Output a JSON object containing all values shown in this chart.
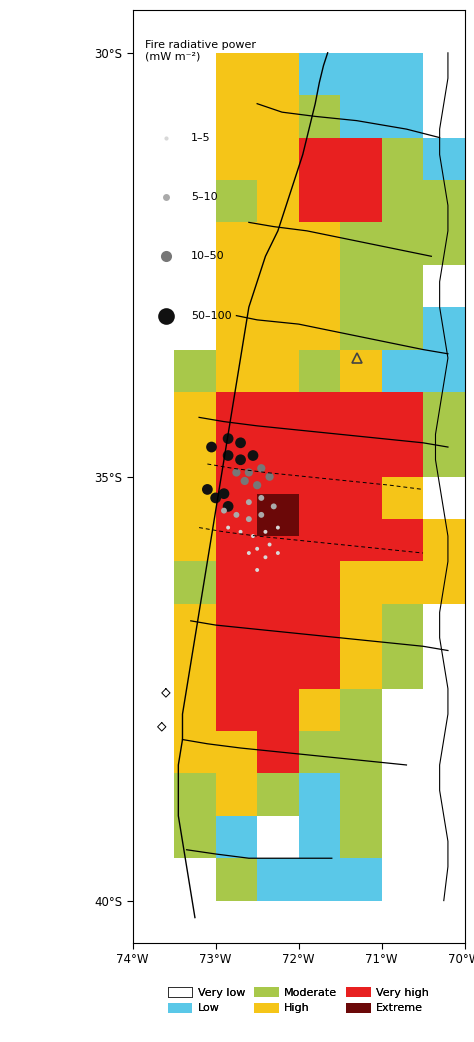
{
  "lon_min": -74.0,
  "lon_max": -69.5,
  "lat_min": -40.5,
  "lat_max": -29.5,
  "map_lon_min": -73.9,
  "map_lon_max": -69.8,
  "map_lat_min": -40.2,
  "map_lat_max": -29.8,
  "colors": {
    "very_low": "#ffffff",
    "low": "#5ac8e8",
    "moderate": "#a8c84a",
    "high": "#f5c518",
    "very_high": "#e82020",
    "extreme": "#6b0808"
  },
  "legend_labels": [
    "Very low",
    "Low",
    "Moderate",
    "High",
    "Very high",
    "Extreme"
  ],
  "legend_colors": [
    "#ffffff",
    "#5ac8e8",
    "#a8c84a",
    "#f5c518",
    "#e82020",
    "#6b0808"
  ],
  "frp_legend_title": "Fire radiative power\n(mW m⁻²)",
  "frp_labels": [
    "1–5",
    "5–10",
    "10–50",
    "50–100"
  ],
  "frp_dot_colors": [
    "#d8d8d8",
    "#aaaaaa",
    "#777777",
    "#111111"
  ],
  "frp_dot_sizes": [
    3,
    5,
    8,
    12
  ],
  "xlabel_ticks": [
    -74,
    -73,
    -72,
    -71,
    -70
  ],
  "xlabel_labels": [
    "74°W",
    "73°W",
    "72°W",
    "71°W",
    "70°W"
  ],
  "ylabel_ticks": [
    -30,
    -35,
    -40
  ],
  "ylabel_labels": [
    "30°S",
    "35°S",
    "40°S"
  ],
  "cell_size": 0.5,
  "figsize": [
    4.74,
    10.42
  ],
  "dpi": 100,
  "grid_cells": [
    {
      "lon": -72.75,
      "lat": -30.25,
      "color": "high"
    },
    {
      "lon": -72.25,
      "lat": -30.25,
      "color": "high"
    },
    {
      "lon": -71.75,
      "lat": -30.25,
      "color": "low"
    },
    {
      "lon": -71.25,
      "lat": -30.25,
      "color": "low"
    },
    {
      "lon": -70.75,
      "lat": -30.25,
      "color": "low"
    },
    {
      "lon": -72.75,
      "lat": -30.75,
      "color": "high"
    },
    {
      "lon": -72.25,
      "lat": -30.75,
      "color": "high"
    },
    {
      "lon": -71.75,
      "lat": -30.75,
      "color": "moderate"
    },
    {
      "lon": -71.25,
      "lat": -30.75,
      "color": "low"
    },
    {
      "lon": -70.75,
      "lat": -30.75,
      "color": "low"
    },
    {
      "lon": -72.75,
      "lat": -31.25,
      "color": "high"
    },
    {
      "lon": -72.25,
      "lat": -31.25,
      "color": "high"
    },
    {
      "lon": -71.75,
      "lat": -31.25,
      "color": "very_high"
    },
    {
      "lon": -71.25,
      "lat": -31.25,
      "color": "very_high"
    },
    {
      "lon": -70.75,
      "lat": -31.25,
      "color": "moderate"
    },
    {
      "lon": -70.25,
      "lat": -31.25,
      "color": "low"
    },
    {
      "lon": -72.75,
      "lat": -31.75,
      "color": "moderate"
    },
    {
      "lon": -72.25,
      "lat": -31.75,
      "color": "high"
    },
    {
      "lon": -71.75,
      "lat": -31.75,
      "color": "very_high"
    },
    {
      "lon": -71.25,
      "lat": -31.75,
      "color": "very_high"
    },
    {
      "lon": -70.75,
      "lat": -31.75,
      "color": "moderate"
    },
    {
      "lon": -70.25,
      "lat": -31.75,
      "color": "moderate"
    },
    {
      "lon": -72.75,
      "lat": -32.25,
      "color": "high"
    },
    {
      "lon": -72.25,
      "lat": -32.25,
      "color": "high"
    },
    {
      "lon": -71.75,
      "lat": -32.25,
      "color": "high"
    },
    {
      "lon": -71.25,
      "lat": -32.25,
      "color": "moderate"
    },
    {
      "lon": -70.75,
      "lat": -32.25,
      "color": "moderate"
    },
    {
      "lon": -70.25,
      "lat": -32.25,
      "color": "moderate"
    },
    {
      "lon": -72.75,
      "lat": -32.75,
      "color": "high"
    },
    {
      "lon": -72.25,
      "lat": -32.75,
      "color": "high"
    },
    {
      "lon": -71.75,
      "lat": -32.75,
      "color": "high"
    },
    {
      "lon": -71.25,
      "lat": -32.75,
      "color": "moderate"
    },
    {
      "lon": -70.75,
      "lat": -32.75,
      "color": "moderate"
    },
    {
      "lon": -72.75,
      "lat": -33.25,
      "color": "high"
    },
    {
      "lon": -72.25,
      "lat": -33.25,
      "color": "high"
    },
    {
      "lon": -71.75,
      "lat": -33.25,
      "color": "high"
    },
    {
      "lon": -71.25,
      "lat": -33.25,
      "color": "moderate"
    },
    {
      "lon": -70.75,
      "lat": -33.25,
      "color": "moderate"
    },
    {
      "lon": -70.25,
      "lat": -33.25,
      "color": "low"
    },
    {
      "lon": -73.25,
      "lat": -33.75,
      "color": "moderate"
    },
    {
      "lon": -72.75,
      "lat": -33.75,
      "color": "high"
    },
    {
      "lon": -72.25,
      "lat": -33.75,
      "color": "high"
    },
    {
      "lon": -71.75,
      "lat": -33.75,
      "color": "moderate"
    },
    {
      "lon": -71.25,
      "lat": -33.75,
      "color": "high"
    },
    {
      "lon": -70.75,
      "lat": -33.75,
      "color": "low"
    },
    {
      "lon": -70.25,
      "lat": -33.75,
      "color": "low"
    },
    {
      "lon": -73.25,
      "lat": -34.25,
      "color": "high"
    },
    {
      "lon": -72.75,
      "lat": -34.25,
      "color": "very_high"
    },
    {
      "lon": -72.25,
      "lat": -34.25,
      "color": "very_high"
    },
    {
      "lon": -71.75,
      "lat": -34.25,
      "color": "very_high"
    },
    {
      "lon": -71.25,
      "lat": -34.25,
      "color": "very_high"
    },
    {
      "lon": -70.75,
      "lat": -34.25,
      "color": "very_high"
    },
    {
      "lon": -70.25,
      "lat": -34.25,
      "color": "moderate"
    },
    {
      "lon": -73.25,
      "lat": -34.75,
      "color": "high"
    },
    {
      "lon": -72.75,
      "lat": -34.75,
      "color": "very_high"
    },
    {
      "lon": -72.25,
      "lat": -34.75,
      "color": "very_high"
    },
    {
      "lon": -71.75,
      "lat": -34.75,
      "color": "very_high"
    },
    {
      "lon": -71.25,
      "lat": -34.75,
      "color": "very_high"
    },
    {
      "lon": -70.75,
      "lat": -34.75,
      "color": "very_high"
    },
    {
      "lon": -70.25,
      "lat": -34.75,
      "color": "moderate"
    },
    {
      "lon": -73.25,
      "lat": -35.25,
      "color": "high"
    },
    {
      "lon": -72.75,
      "lat": -35.25,
      "color": "very_high"
    },
    {
      "lon": -72.25,
      "lat": -35.25,
      "color": "very_high"
    },
    {
      "lon": -71.75,
      "lat": -35.25,
      "color": "very_high"
    },
    {
      "lon": -71.25,
      "lat": -35.25,
      "color": "very_high"
    },
    {
      "lon": -70.75,
      "lat": -35.25,
      "color": "high"
    },
    {
      "lon": -73.25,
      "lat": -35.75,
      "color": "high"
    },
    {
      "lon": -72.75,
      "lat": -35.75,
      "color": "very_high"
    },
    {
      "lon": -72.25,
      "lat": -35.75,
      "color": "very_high"
    },
    {
      "lon": -71.75,
      "lat": -35.75,
      "color": "very_high"
    },
    {
      "lon": -71.25,
      "lat": -35.75,
      "color": "very_high"
    },
    {
      "lon": -70.75,
      "lat": -35.75,
      "color": "very_high"
    },
    {
      "lon": -70.25,
      "lat": -35.75,
      "color": "high"
    },
    {
      "lon": -73.25,
      "lat": -36.25,
      "color": "moderate"
    },
    {
      "lon": -72.75,
      "lat": -36.25,
      "color": "very_high"
    },
    {
      "lon": -72.25,
      "lat": -36.25,
      "color": "very_high"
    },
    {
      "lon": -71.75,
      "lat": -36.25,
      "color": "very_high"
    },
    {
      "lon": -71.25,
      "lat": -36.25,
      "color": "high"
    },
    {
      "lon": -70.75,
      "lat": -36.25,
      "color": "high"
    },
    {
      "lon": -70.25,
      "lat": -36.25,
      "color": "high"
    },
    {
      "lon": -73.25,
      "lat": -36.75,
      "color": "high"
    },
    {
      "lon": -72.75,
      "lat": -36.75,
      "color": "very_high"
    },
    {
      "lon": -72.25,
      "lat": -36.75,
      "color": "very_high"
    },
    {
      "lon": -71.75,
      "lat": -36.75,
      "color": "very_high"
    },
    {
      "lon": -71.25,
      "lat": -36.75,
      "color": "high"
    },
    {
      "lon": -70.75,
      "lat": -36.75,
      "color": "moderate"
    },
    {
      "lon": -73.25,
      "lat": -37.25,
      "color": "high"
    },
    {
      "lon": -72.75,
      "lat": -37.25,
      "color": "very_high"
    },
    {
      "lon": -72.25,
      "lat": -37.25,
      "color": "very_high"
    },
    {
      "lon": -71.75,
      "lat": -37.25,
      "color": "very_high"
    },
    {
      "lon": -71.25,
      "lat": -37.25,
      "color": "high"
    },
    {
      "lon": -70.75,
      "lat": -37.25,
      "color": "moderate"
    },
    {
      "lon": -73.25,
      "lat": -37.75,
      "color": "high"
    },
    {
      "lon": -72.75,
      "lat": -37.75,
      "color": "very_high"
    },
    {
      "lon": -72.25,
      "lat": -37.75,
      "color": "very_high"
    },
    {
      "lon": -71.75,
      "lat": -37.75,
      "color": "high"
    },
    {
      "lon": -71.25,
      "lat": -37.75,
      "color": "moderate"
    },
    {
      "lon": -73.25,
      "lat": -38.25,
      "color": "high"
    },
    {
      "lon": -72.75,
      "lat": -38.25,
      "color": "high"
    },
    {
      "lon": -72.25,
      "lat": -38.25,
      "color": "very_high"
    },
    {
      "lon": -71.75,
      "lat": -38.25,
      "color": "moderate"
    },
    {
      "lon": -71.25,
      "lat": -38.25,
      "color": "moderate"
    },
    {
      "lon": -73.25,
      "lat": -38.75,
      "color": "moderate"
    },
    {
      "lon": -72.75,
      "lat": -38.75,
      "color": "high"
    },
    {
      "lon": -72.25,
      "lat": -38.75,
      "color": "moderate"
    },
    {
      "lon": -71.75,
      "lat": -38.75,
      "color": "low"
    },
    {
      "lon": -71.25,
      "lat": -38.75,
      "color": "moderate"
    },
    {
      "lon": -73.25,
      "lat": -39.25,
      "color": "moderate"
    },
    {
      "lon": -72.75,
      "lat": -39.25,
      "color": "low"
    },
    {
      "lon": -72.25,
      "lat": -39.25,
      "color": "very_low"
    },
    {
      "lon": -71.75,
      "lat": -39.25,
      "color": "low"
    },
    {
      "lon": -71.25,
      "lat": -39.25,
      "color": "moderate"
    },
    {
      "lon": -72.75,
      "lat": -39.75,
      "color": "moderate"
    },
    {
      "lon": -72.25,
      "lat": -39.75,
      "color": "low"
    },
    {
      "lon": -71.75,
      "lat": -39.75,
      "color": "low"
    },
    {
      "lon": -71.25,
      "lat": -39.75,
      "color": "low"
    }
  ],
  "extreme_cells": [
    {
      "lon": -72.25,
      "lat": -35.45
    }
  ],
  "dot_markers": [
    {
      "lon": -73.05,
      "lat": -34.65,
      "cat": 3
    },
    {
      "lon": -72.85,
      "lat": -34.55,
      "cat": 3
    },
    {
      "lon": -72.7,
      "lat": -34.6,
      "cat": 3
    },
    {
      "lon": -72.85,
      "lat": -34.75,
      "cat": 3
    },
    {
      "lon": -72.7,
      "lat": -34.8,
      "cat": 3
    },
    {
      "lon": -72.55,
      "lat": -34.75,
      "cat": 3
    },
    {
      "lon": -72.6,
      "lat": -34.95,
      "cat": 2
    },
    {
      "lon": -72.45,
      "lat": -34.9,
      "cat": 2
    },
    {
      "lon": -72.35,
      "lat": -35.0,
      "cat": 2
    },
    {
      "lon": -72.5,
      "lat": -35.1,
      "cat": 2
    },
    {
      "lon": -72.65,
      "lat": -35.05,
      "cat": 2
    },
    {
      "lon": -72.75,
      "lat": -34.95,
      "cat": 2
    },
    {
      "lon": -73.1,
      "lat": -35.15,
      "cat": 3
    },
    {
      "lon": -73.0,
      "lat": -35.25,
      "cat": 3
    },
    {
      "lon": -72.9,
      "lat": -35.2,
      "cat": 3
    },
    {
      "lon": -72.85,
      "lat": -35.35,
      "cat": 3
    },
    {
      "lon": -72.6,
      "lat": -35.3,
      "cat": 1
    },
    {
      "lon": -72.45,
      "lat": -35.25,
      "cat": 1
    },
    {
      "lon": -72.3,
      "lat": -35.35,
      "cat": 1
    },
    {
      "lon": -72.45,
      "lat": -35.45,
      "cat": 1
    },
    {
      "lon": -72.6,
      "lat": -35.5,
      "cat": 1
    },
    {
      "lon": -72.75,
      "lat": -35.45,
      "cat": 1
    },
    {
      "lon": -72.9,
      "lat": -35.4,
      "cat": 1
    },
    {
      "lon": -72.25,
      "lat": -35.6,
      "cat": 0
    },
    {
      "lon": -72.4,
      "lat": -35.65,
      "cat": 0
    },
    {
      "lon": -72.55,
      "lat": -35.7,
      "cat": 0
    },
    {
      "lon": -72.7,
      "lat": -35.65,
      "cat": 0
    },
    {
      "lon": -72.85,
      "lat": -35.6,
      "cat": 0
    },
    {
      "lon": -72.35,
      "lat": -35.8,
      "cat": 0
    },
    {
      "lon": -72.5,
      "lat": -35.85,
      "cat": 0
    },
    {
      "lon": -72.6,
      "lat": -35.9,
      "cat": 0
    },
    {
      "lon": -72.4,
      "lat": -35.95,
      "cat": 0
    },
    {
      "lon": -72.25,
      "lat": -35.9,
      "cat": 0
    },
    {
      "lon": -72.5,
      "lat": -36.1,
      "cat": 0
    }
  ],
  "triangle_marker": {
    "lon": -71.3,
    "lat": -33.6
  },
  "coast_west": [
    [
      -71.65,
      -30.0
    ],
    [
      -71.7,
      -30.15
    ],
    [
      -71.75,
      -30.35
    ],
    [
      -71.8,
      -30.6
    ],
    [
      -71.85,
      -30.8
    ],
    [
      -71.9,
      -31.0
    ],
    [
      -71.95,
      -31.2
    ],
    [
      -72.05,
      -31.5
    ],
    [
      -72.15,
      -31.8
    ],
    [
      -72.25,
      -32.1
    ],
    [
      -72.4,
      -32.4
    ],
    [
      -72.5,
      -32.7
    ],
    [
      -72.6,
      -33.0
    ],
    [
      -72.65,
      -33.3
    ],
    [
      -72.7,
      -33.6
    ],
    [
      -72.75,
      -33.9
    ],
    [
      -72.8,
      -34.2
    ],
    [
      -72.85,
      -34.5
    ],
    [
      -72.9,
      -34.8
    ],
    [
      -72.95,
      -35.1
    ],
    [
      -73.0,
      -35.4
    ],
    [
      -73.05,
      -35.7
    ],
    [
      -73.1,
      -36.0
    ],
    [
      -73.15,
      -36.3
    ],
    [
      -73.2,
      -36.6
    ],
    [
      -73.25,
      -36.9
    ],
    [
      -73.3,
      -37.2
    ],
    [
      -73.35,
      -37.5
    ],
    [
      -73.4,
      -37.8
    ],
    [
      -73.4,
      -38.1
    ],
    [
      -73.45,
      -38.4
    ],
    [
      -73.45,
      -38.7
    ],
    [
      -73.45,
      -39.0
    ],
    [
      -73.4,
      -39.3
    ],
    [
      -73.35,
      -39.6
    ],
    [
      -73.3,
      -39.9
    ],
    [
      -73.25,
      -40.2
    ]
  ],
  "coast_east": [
    [
      -70.2,
      -30.0
    ],
    [
      -70.2,
      -30.3
    ],
    [
      -70.25,
      -30.6
    ],
    [
      -70.3,
      -30.9
    ],
    [
      -70.3,
      -31.2
    ],
    [
      -70.25,
      -31.5
    ],
    [
      -70.2,
      -31.8
    ],
    [
      -70.2,
      -32.1
    ],
    [
      -70.25,
      -32.4
    ],
    [
      -70.3,
      -32.7
    ],
    [
      -70.3,
      -33.0
    ],
    [
      -70.25,
      -33.3
    ],
    [
      -70.2,
      -33.6
    ],
    [
      -70.25,
      -33.9
    ],
    [
      -70.3,
      -34.2
    ],
    [
      -70.35,
      -34.5
    ],
    [
      -70.35,
      -34.8
    ],
    [
      -70.3,
      -35.1
    ],
    [
      -70.25,
      -35.4
    ],
    [
      -70.2,
      -35.7
    ],
    [
      -70.2,
      -36.0
    ],
    [
      -70.25,
      -36.3
    ],
    [
      -70.3,
      -36.6
    ],
    [
      -70.3,
      -36.9
    ],
    [
      -70.25,
      -37.2
    ],
    [
      -70.2,
      -37.5
    ],
    [
      -70.2,
      -37.8
    ],
    [
      -70.25,
      -38.1
    ],
    [
      -70.3,
      -38.4
    ],
    [
      -70.3,
      -38.7
    ],
    [
      -70.25,
      -39.0
    ],
    [
      -70.2,
      -39.3
    ],
    [
      -70.2,
      -39.6
    ],
    [
      -70.25,
      -40.0
    ]
  ],
  "region_boundaries": [
    [
      [
        -72.5,
        -30.6
      ],
      [
        -72.2,
        -30.7
      ],
      [
        -71.8,
        -30.75
      ],
      [
        -71.3,
        -30.8
      ],
      [
        -70.7,
        -30.9
      ],
      [
        -70.3,
        -31.0
      ]
    ],
    [
      [
        -72.6,
        -32.0
      ],
      [
        -72.3,
        -32.05
      ],
      [
        -71.9,
        -32.1
      ],
      [
        -71.4,
        -32.2
      ],
      [
        -70.9,
        -32.3
      ],
      [
        -70.4,
        -32.4
      ]
    ],
    [
      [
        -72.75,
        -33.1
      ],
      [
        -72.5,
        -33.15
      ],
      [
        -72.0,
        -33.2
      ],
      [
        -71.5,
        -33.3
      ],
      [
        -71.0,
        -33.4
      ],
      [
        -70.5,
        -33.5
      ],
      [
        -70.2,
        -33.55
      ]
    ],
    [
      [
        -73.2,
        -34.3
      ],
      [
        -72.9,
        -34.35
      ],
      [
        -72.5,
        -34.4
      ],
      [
        -72.0,
        -34.45
      ],
      [
        -71.5,
        -34.5
      ],
      [
        -71.0,
        -34.55
      ],
      [
        -70.5,
        -34.6
      ],
      [
        -70.2,
        -34.65
      ]
    ],
    [
      [
        -73.3,
        -36.7
      ],
      [
        -73.0,
        -36.75
      ],
      [
        -72.5,
        -36.8
      ],
      [
        -72.0,
        -36.85
      ],
      [
        -71.5,
        -36.9
      ],
      [
        -71.0,
        -36.95
      ],
      [
        -70.5,
        -37.0
      ],
      [
        -70.2,
        -37.05
      ]
    ],
    [
      [
        -73.4,
        -38.1
      ],
      [
        -73.1,
        -38.15
      ],
      [
        -72.7,
        -38.2
      ],
      [
        -72.2,
        -38.25
      ],
      [
        -71.7,
        -38.3
      ],
      [
        -71.2,
        -38.35
      ],
      [
        -70.7,
        -38.4
      ]
    ],
    [
      [
        -73.35,
        -39.4
      ],
      [
        -73.0,
        -39.45
      ],
      [
        -72.6,
        -39.5
      ],
      [
        -72.1,
        -39.5
      ],
      [
        -71.6,
        -39.5
      ]
    ]
  ],
  "dashed_boundaries": [
    [
      [
        -73.1,
        -34.85
      ],
      [
        -72.8,
        -34.9
      ],
      [
        -72.4,
        -34.95
      ],
      [
        -71.9,
        -35.0
      ],
      [
        -71.4,
        -35.05
      ],
      [
        -70.9,
        -35.1
      ],
      [
        -70.5,
        -35.15
      ]
    ],
    [
      [
        -73.2,
        -35.6
      ],
      [
        -72.9,
        -35.65
      ],
      [
        -72.5,
        -35.7
      ],
      [
        -72.0,
        -35.75
      ],
      [
        -71.5,
        -35.8
      ],
      [
        -71.0,
        -35.85
      ],
      [
        -70.5,
        -35.9
      ]
    ]
  ],
  "small_islands": [
    [
      [
        -73.6,
        -37.5
      ],
      [
        -73.65,
        -37.55
      ],
      [
        -73.6,
        -37.6
      ],
      [
        -73.55,
        -37.55
      ],
      [
        -73.6,
        -37.5
      ]
    ],
    [
      [
        -73.65,
        -37.9
      ],
      [
        -73.7,
        -37.95
      ],
      [
        -73.65,
        -38.0
      ],
      [
        -73.6,
        -37.95
      ],
      [
        -73.65,
        -37.9
      ]
    ]
  ]
}
